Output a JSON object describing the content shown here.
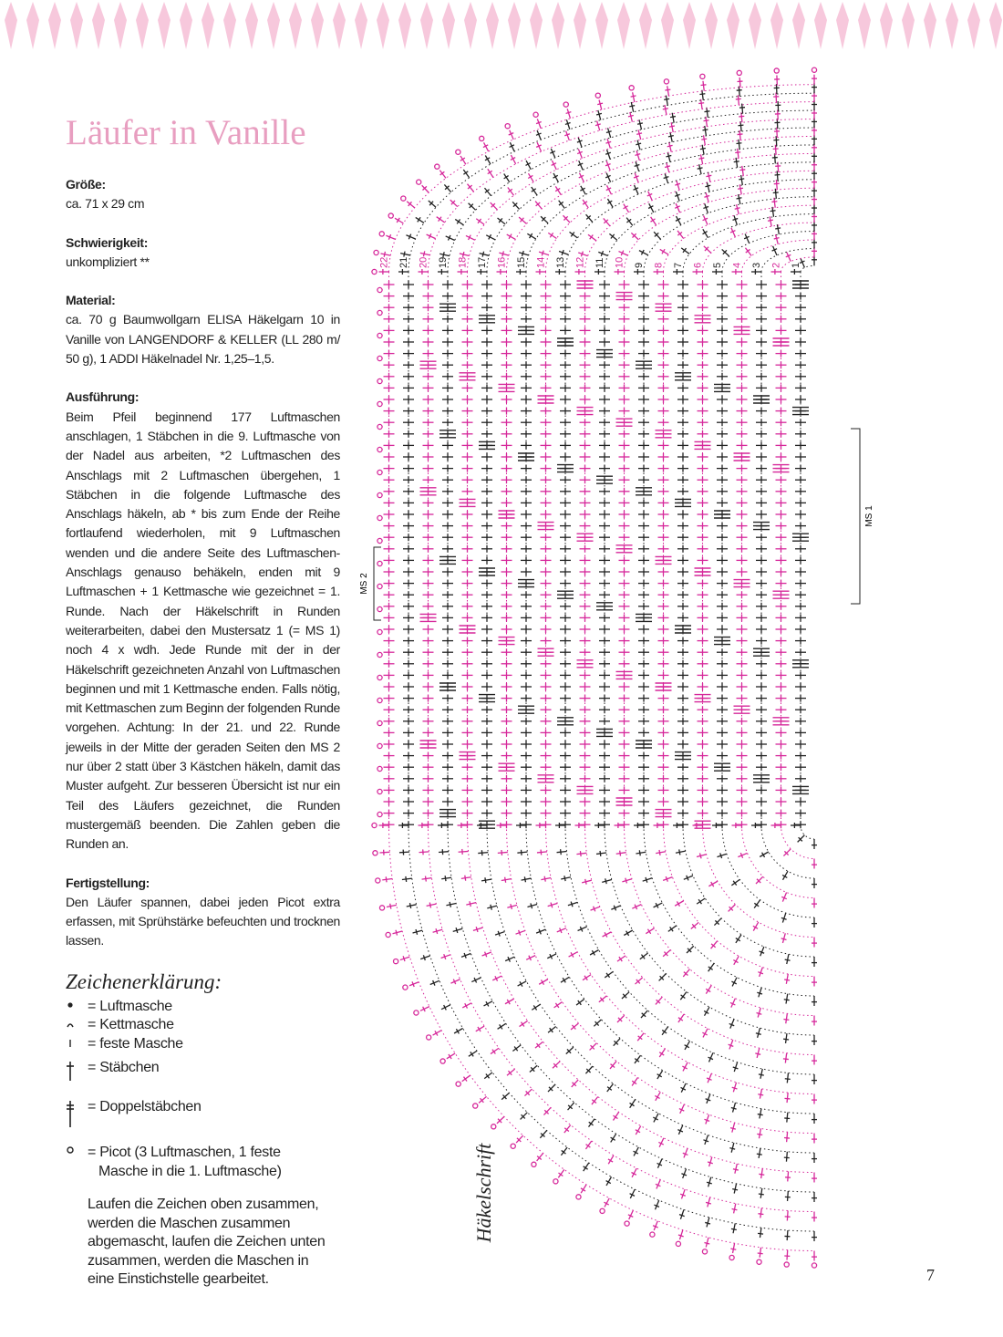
{
  "header": {
    "title": "Läufer in Vanille"
  },
  "sections": [
    {
      "heading": "Größe:",
      "text": "ca. 71 x 29 cm"
    },
    {
      "heading": "Schwierigkeit:",
      "text": "unkompliziert **"
    },
    {
      "heading": "Material:",
      "text": "ca. 70 g Baumwollgarn ELISA Häkelgarn 10 in Vanille von LANGENDORF & KELLER (LL 280 m/ 50 g), 1 ADDI Häkelnadel Nr. 1,25–1,5."
    },
    {
      "heading": "Ausführung:",
      "text": "Beim Pfeil beginnend 177 Luftmaschen anschlagen, 1 Stäbchen in die 9. Luftmasche von der Nadel aus arbeiten, *2 Luftmaschen des Anschlags mit 2 Luftmaschen übergehen, 1 Stäbchen in die folgende Luftmasche des Anschlags häkeln, ab * bis zum Ende der Reihe fortlaufend wiederholen, mit 9 Luftmaschen wenden und die andere Seite des Luftmaschen-Anschlags genauso behäkeln, enden mit 9 Luftmaschen + 1 Kettmasche wie gezeichnet = 1. Runde. Nach der Häkelschrift in Runden weiterarbeiten, dabei den Mustersatz 1 (= MS 1) noch 4 x wdh. Jede Runde mit der in der Häkelschrift gezeichneten Anzahl von Luftmaschen beginnen und mit 1 Kettmasche enden. Falls nötig, mit Kettmaschen zum Beginn der folgenden Runde vorgehen. Achtung: In der 21. und 22. Runde jeweils in der Mitte der geraden Seiten den MS 2 nur über 2 statt über 3 Kästchen häkeln, damit das Muster aufgeht. Zur besseren Übersicht ist nur ein Teil des Läufers gezeichnet, die Runden mustergemäß beenden. Die Zahlen geben die Runden an."
    },
    {
      "heading": "Fertigstellung:",
      "text": "Den Läufer spannen, dabei jeden Picot extra erfassen, mit Sprühstärke befeuchten und trocknen lassen."
    }
  ],
  "legend": {
    "title": "Zeichenerklärung:",
    "items": [
      "= Luftmasche",
      "= Kettmasche",
      "= feste Masche",
      "= Stäbchen",
      "= Doppelstäbchen",
      "= Picot (3 Luftmaschen, 1 feste Masche in die 1. Luftmasche)"
    ],
    "note": "Laufen die Zeichen oben zusammen, werden die Maschen zusammen abgemascht, laufen die Zeichen unten zusammen, werden die Maschen in eine Einstichstelle gearbeitet."
  },
  "diagram": {
    "label": "Häkelschrift",
    "rounds": [
      1,
      2,
      3,
      4,
      5,
      6,
      7,
      8,
      9,
      10,
      11,
      12,
      13,
      14,
      15,
      16,
      17,
      18,
      19,
      20,
      21,
      22
    ],
    "ms1": "MS 1",
    "ms2": "MS 2"
  },
  "page_number": "7"
}
